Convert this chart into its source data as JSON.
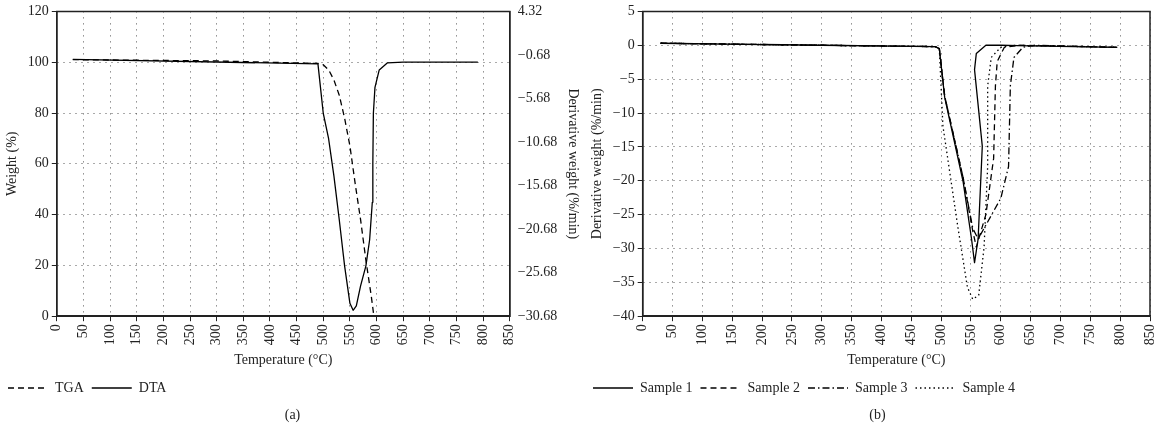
{
  "chart_data": [
    {
      "type": "line",
      "xlabel": "Temperature (°C)",
      "ylabel": "Weight (%)",
      "y2label": "Derivative weight (%/min)",
      "xlim": [
        0,
        850
      ],
      "xticks": [
        0,
        50,
        100,
        150,
        200,
        250,
        300,
        350,
        400,
        450,
        500,
        550,
        600,
        650,
        700,
        750,
        800,
        850
      ],
      "ylim": [
        0,
        120
      ],
      "yticks": [
        0,
        20,
        40,
        60,
        80,
        100,
        120
      ],
      "y2lim": [
        -30.68,
        4.32
      ],
      "y2ticks": [
        -30.68,
        -25.68,
        -20.68,
        -15.68,
        -10.68,
        -5.68,
        -0.68,
        4.32
      ],
      "grid": true,
      "legend": "bottom left",
      "marker": "none",
      "annotations": [
        "(a)"
      ],
      "series": [
        {
          "name": "TGA",
          "color": "#000000",
          "line_style": "dashed",
          "x": [
            30,
            300,
            490,
            500,
            510,
            520,
            530,
            540,
            550,
            560,
            570,
            580,
            590,
            595
          ],
          "values": [
            101,
            100.5,
            99.5,
            99,
            97,
            93,
            87,
            78,
            67,
            52,
            38,
            22,
            8,
            0
          ]
        },
        {
          "name": "DTA",
          "color": "#000000",
          "line_style": "solid",
          "axis": "y2",
          "x": [
            30,
            490,
            500,
            510,
            520,
            530,
            540,
            550,
            556,
            562,
            570,
            580,
            587,
            592,
            593,
            594,
            597,
            605,
            620,
            650,
            790
          ],
          "values": [
            -1.2,
            -1.7,
            -7.4,
            -10.3,
            -14.6,
            -19.6,
            -24.9,
            -29.2,
            -30.0,
            -29.5,
            -27.2,
            -24.9,
            -21.9,
            -17.6,
            -13.2,
            -7.4,
            -4.4,
            -2.4,
            -1.6,
            -1.5,
            -1.5
          ]
        }
      ]
    },
    {
      "type": "line",
      "xlabel": "Temperature (°C)",
      "ylabel": "Derivative weight (%/min)",
      "xlim": [
        0,
        850
      ],
      "xticks": [
        0,
        50,
        100,
        150,
        200,
        250,
        300,
        350,
        400,
        450,
        500,
        550,
        600,
        650,
        700,
        750,
        800,
        850
      ],
      "ylim": [
        -40,
        5
      ],
      "yticks": [
        -40,
        -35,
        -30,
        -25,
        -20,
        -15,
        -10,
        -5,
        0,
        5
      ],
      "grid": true,
      "legend": "bottom left",
      "marker": "none",
      "annotations": [
        "(b)"
      ],
      "series": [
        {
          "name": "Sample 1",
          "color": "#000000",
          "line_style": "solid",
          "x": [
            30,
            300,
            490,
            497,
            506,
            537,
            551,
            556,
            562,
            569,
            556,
            559,
            575,
            600,
            795
          ],
          "values": [
            0.3,
            0,
            -0.2,
            -0.5,
            -7.7,
            -20.2,
            -28.6,
            -32.1,
            -28.6,
            -14.9,
            -3.6,
            -1.2,
            0,
            0,
            -0.3
          ]
        },
        {
          "name": "Sample 2",
          "color": "#000000",
          "line_style": "dashed",
          "x": [
            30,
            300,
            490,
            497,
            506,
            537,
            553,
            559,
            575,
            588,
            591,
            594,
            606,
            631,
            795
          ],
          "values": [
            0.3,
            0,
            -0.2,
            -0.5,
            -7.5,
            -19.6,
            -27.4,
            -29.8,
            -25,
            -16.7,
            -6,
            -2.4,
            -0.3,
            0,
            -0.3
          ]
        },
        {
          "name": "Sample 3",
          "color": "#000000",
          "line_style": "dashdot",
          "x": [
            30,
            300,
            490,
            497,
            506,
            537,
            553,
            562,
            600,
            613,
            616,
            622,
            637,
            656,
            795
          ],
          "values": [
            0.3,
            0,
            -0.2,
            -0.5,
            -7.5,
            -19.6,
            -27,
            -28.6,
            -22.6,
            -17.9,
            -6,
            -1.8,
            -0.3,
            0,
            -0.3
          ]
        },
        {
          "name": "Sample 4",
          "color": "#000000",
          "line_style": "dotted",
          "x": [
            30,
            300,
            490,
            497,
            503,
            528,
            544,
            553,
            563,
            572,
            578,
            578,
            584,
            600,
            619,
            795
          ],
          "values": [
            0.3,
            0,
            -0.2,
            -0.5,
            -11.9,
            -26.8,
            -35.7,
            -37.5,
            -36.9,
            -29.8,
            -17.9,
            -6,
            -1.8,
            -0.3,
            0,
            -0.3
          ]
        }
      ]
    }
  ]
}
